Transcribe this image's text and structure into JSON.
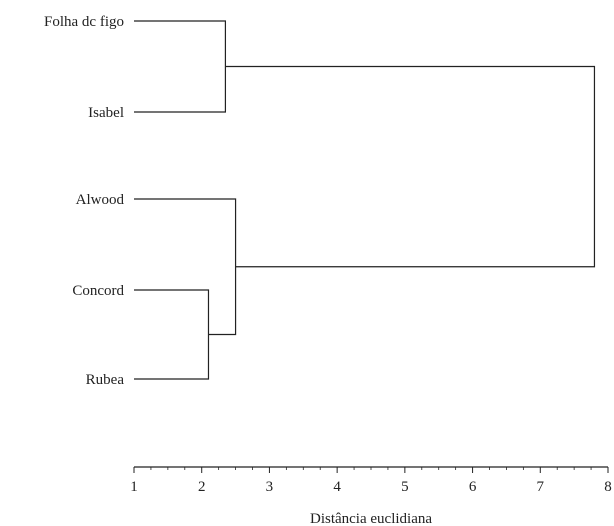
{
  "chart_data": {
    "type": "dendrogram",
    "xlabel": "Distância euclidiana",
    "xlim": [
      1,
      8
    ],
    "xticks": [
      "1",
      "2",
      "3",
      "4",
      "5",
      "6",
      "7",
      "8"
    ],
    "minor_ticks_per_unit": 4,
    "leaves": [
      "Folha dc figo",
      "Isabel",
      "Alwood",
      "Concord",
      "Rubea"
    ],
    "merges": [
      {
        "left": "Concord",
        "right": "Rubea",
        "height": 2.1
      },
      {
        "left": "Folha dc figo",
        "right": "Isabel",
        "height": 2.35
      },
      {
        "left": "Alwood",
        "right": "Concord + Rubea",
        "height": 2.5
      },
      {
        "left": "Folha dc figo + Isabel",
        "right": "Alwood + Concord + Rubea",
        "height": 7.8
      }
    ],
    "grid": false,
    "colors": {
      "lines": "#222222",
      "text": "#222222"
    }
  }
}
